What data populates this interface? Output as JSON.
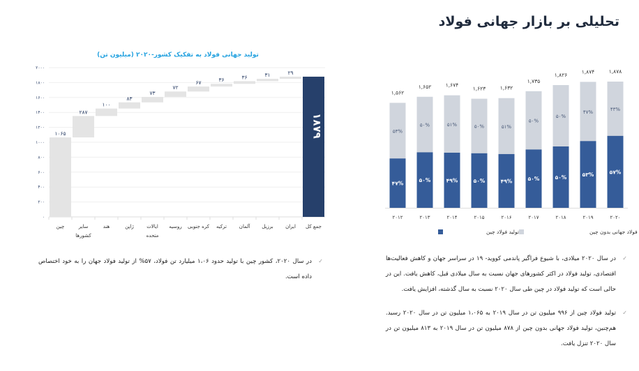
{
  "page": {
    "title": "تحلیلی بر بازار جهانی فولاد"
  },
  "waterfall": {
    "title": "تولید جهانی فولاد به تفکیک کشور-۲۰۲۰ (میلیون تن)",
    "y_ticks": [
      "۰",
      "۲۰۰",
      "۴۰۰",
      "۶۰۰",
      "۸۰۰",
      "۱۰۰۰",
      "۱۲۰۰",
      "۱۴۰۰",
      "۱۶۰۰",
      "۱۸۰۰",
      "۲۰۰۰"
    ],
    "total_label": "۱۸۷۹",
    "categories": [
      "چین",
      "سایر کشورها",
      "هند",
      "ژاپن",
      "ایالات متحده",
      "روسیه",
      "کره جنوبی",
      "ترکیه",
      "آلمان",
      "برزیل",
      "ایران"
    ],
    "value_labels": [
      "۱۰۶۵",
      "۲۸۷",
      "۱۰۰",
      "۸۳",
      "۷۳",
      "۷۲",
      "۶۷",
      "۳۶",
      "۳۶",
      "۳۱",
      "۲۹"
    ],
    "total_category": "جمع کل"
  },
  "chart_data": [
    {
      "type": "bar",
      "subtype": "waterfall",
      "title": "تولید جهانی فولاد به تفکیک کشور-۲۰۲۰ (میلیون تن)",
      "categories": [
        "چین",
        "سایر کشورها",
        "هند",
        "ژاپن",
        "ایالات متحده",
        "روسیه",
        "کره جنوبی",
        "ترکیه",
        "آلمان",
        "برزیل",
        "ایران",
        "جمع کل"
      ],
      "values": [
        1065,
        287,
        100,
        83,
        73,
        72,
        67,
        36,
        36,
        31,
        29,
        1879
      ],
      "ylim": [
        0,
        2000
      ],
      "grid": true,
      "colors": {
        "step": "#e4e4e4",
        "total": "#26406b"
      }
    },
    {
      "type": "bar",
      "subtype": "stacked",
      "categories": [
        "۲۰۱۲",
        "۲۰۱۳",
        "۲۰۱۴",
        "۲۰۱۵",
        "۲۰۱۶",
        "۲۰۱۷",
        "۲۰۱۸",
        "۲۰۱۹",
        "۲۰۲۰"
      ],
      "totals": [
        1562,
        1652,
        1674,
        1623,
        1632,
        1735,
        1826,
        1874,
        1878
      ],
      "total_labels": [
        "۱,۵۶۲",
        "۱,۶۵۲",
        "۱,۶۷۴",
        "۱,۶۲۳",
        "۱,۶۳۲",
        "۱,۷۳۵",
        "۱,۸۲۶",
        "۱,۸۷۴",
        "۱,۸۷۸"
      ],
      "series": [
        {
          "name": "تولید فولاد چین",
          "share_percent": [
            47,
            50,
            49,
            50,
            49,
            50,
            50,
            53,
            57
          ],
          "labels": [
            "۴۷%",
            "۵۰%",
            "۴۹%",
            "۵۰%",
            "۴۹%",
            "۵۰%",
            "۵۰%",
            "۵۳%",
            "۵۷%"
          ],
          "color": "#355c99"
        },
        {
          "name": "تولید فولاد جهانی بدون چین",
          "share_percent": [
            53,
            50,
            51,
            50,
            51,
            50,
            50,
            47,
            43
          ],
          "labels": [
            "۵۳%",
            "۵۰%",
            "۵۱%",
            "۵۰%",
            "۵۱%",
            "۵۰%",
            "۵۰%",
            "۴۷%",
            "۴۳%"
          ],
          "color": "#d0d5dd"
        }
      ],
      "legend": "bottom"
    }
  ],
  "text": {
    "p1": "در سال ۲۰۲۰ میلادی، با شیوع فراگیر پاندمی کووید- ۱۹ در سراسر جهان و کاهش فعالیت‌ها اقتصادی، تولید فولاد در اکثر کشورهای جهان نسبت به سال میلادی قبل، کاهش یافت. این در حالی است که تولید فولاد در چین طی سال ۲۰۲۰ نسبت به سال گذشته، افزایش یافت.",
    "p2": "تولید فولاد چین از ۹۹۶ میلیون تن در سال ۲۰۱۹ به ۱،۰۶۵ میلیون تن در سال ۲۰۲۰ رسید. هم‌چنین، تولید فولاد جهانی بدون چین از ۸۷۸ میلیون تن در سال ۲۰۱۹ به ۸۱۳ میلیون تن در سال ۲۰۲۰ تنزل یافت.",
    "p3": "در سال ۲۰۲۰، کشور چین با تولید حدود ۱،۰۶ میلیارد تن فولاد، ۵۷% از تولید فولاد جهان را به خود اختصاص داده است.",
    "bullet": "✓"
  }
}
